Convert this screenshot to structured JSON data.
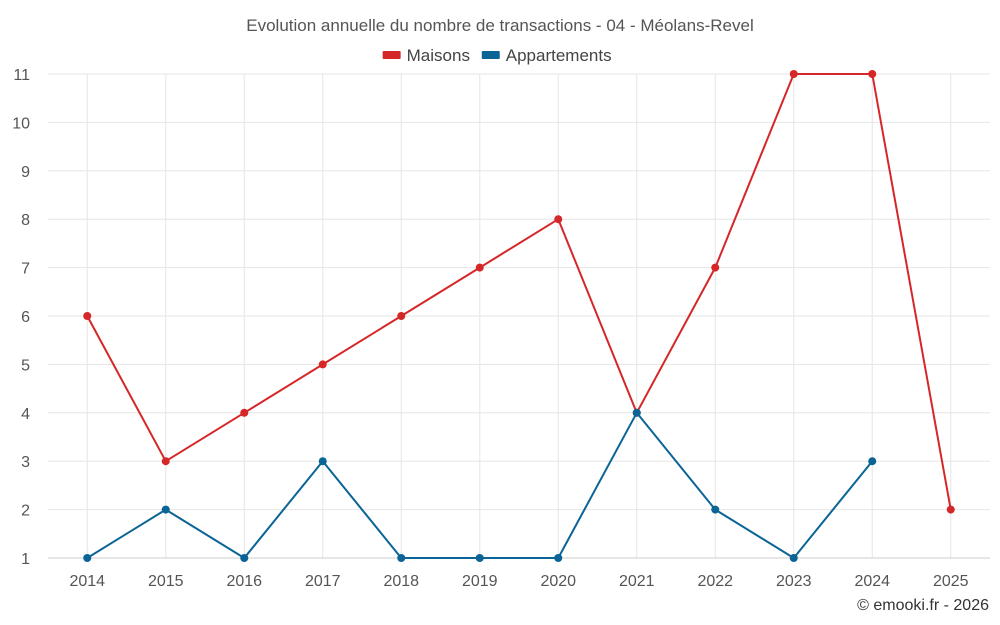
{
  "chart_data": {
    "type": "line",
    "title": "Evolution annuelle du nombre de transactions - 04 - Méolans-Revel",
    "xlabel": "",
    "ylabel": "",
    "categories": [
      "2014",
      "2015",
      "2016",
      "2017",
      "2018",
      "2019",
      "2020",
      "2021",
      "2022",
      "2023",
      "2024",
      "2025"
    ],
    "ylim": [
      1,
      11
    ],
    "yticks": [
      1,
      2,
      3,
      4,
      5,
      6,
      7,
      8,
      9,
      10,
      11
    ],
    "grid": true,
    "legend_position": "top-center",
    "series": [
      {
        "name": "Maisons",
        "color": "#d62728",
        "values": [
          6,
          3,
          4,
          5,
          6,
          7,
          8,
          4,
          7,
          11,
          11,
          2
        ]
      },
      {
        "name": "Appartements",
        "color": "#0a6496",
        "values": [
          1,
          2,
          1,
          3,
          1,
          1,
          1,
          4,
          2,
          1,
          3,
          null
        ]
      }
    ]
  },
  "credit": "© emooki.fr - 2026"
}
